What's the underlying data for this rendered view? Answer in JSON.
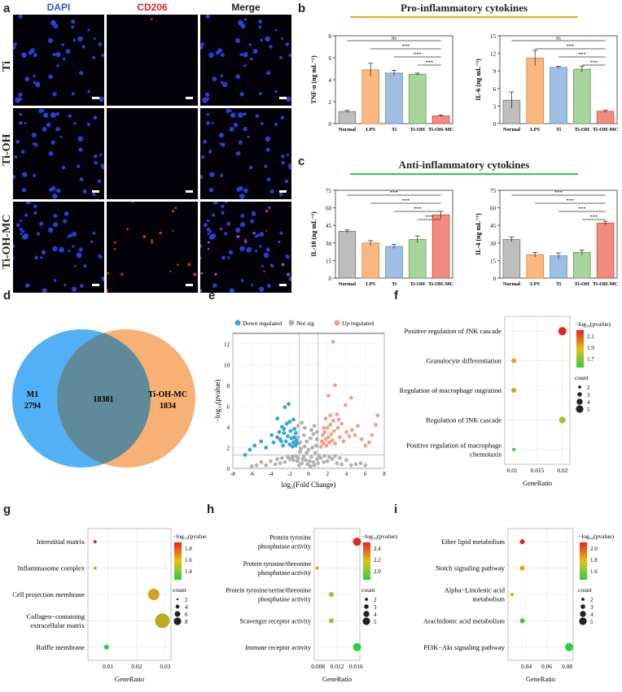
{
  "panel_labels": {
    "a": "a",
    "b": "b",
    "c": "c",
    "d": "d",
    "e": "e",
    "f": "f",
    "g": "g",
    "h": "h",
    "i": "i"
  },
  "microscopy": {
    "columns": [
      "DAPI",
      "CD206",
      "Merge"
    ],
    "column_colors": [
      "#2a5bd7",
      "#d62728",
      "#222222"
    ],
    "rows": [
      "Ti",
      "Ti-OH",
      "Ti-OH-MC"
    ],
    "red_density": [
      1,
      0,
      18
    ],
    "blue_density": [
      40,
      45,
      45
    ]
  },
  "section_b_title": "Pro-inflammatory cytokines",
  "section_c_title": "Anti-inflammatory cytokines",
  "section_b_color": "#f5a623",
  "section_c_color": "#2ecc40",
  "chart_data": [
    {
      "id": "tnf",
      "type": "bar",
      "ylabel": "TNF-α (ng mL⁻¹)",
      "categories": [
        "Normal",
        "LPS",
        "Ti",
        "Ti-OH",
        "Ti-OH-MC"
      ],
      "values": [
        1.1,
        4.9,
        4.6,
        4.5,
        0.7
      ],
      "errors": [
        0.1,
        0.6,
        0.25,
        0.1,
        0.08
      ],
      "ylim": [
        0,
        8
      ],
      "yticks": [
        0,
        2,
        4,
        6,
        8
      ],
      "significance": [
        "ns",
        "***",
        "***",
        "***"
      ]
    },
    {
      "id": "il6",
      "type": "bar",
      "ylabel": "IL-6 (ng mL⁻¹)",
      "categories": [
        "Normal",
        "LPS",
        "Ti",
        "Ti-OH",
        "Ti-OH-MC"
      ],
      "values": [
        4.0,
        11.2,
        9.6,
        9.3,
        2.1
      ],
      "errors": [
        1.4,
        1.3,
        0.2,
        0.5,
        0.2
      ],
      "ylim": [
        0,
        15
      ],
      "yticks": [
        0,
        3,
        6,
        9,
        12,
        15
      ],
      "significance": [
        "ns",
        "***",
        "***",
        "***"
      ]
    },
    {
      "id": "il10",
      "type": "bar",
      "ylabel": "IL-10 (ng mL⁻¹)",
      "categories": [
        "Normal",
        "LPS",
        "Ti",
        "Ti-OH",
        "Ti-OH-MC"
      ],
      "values": [
        40,
        30,
        27,
        33,
        54
      ],
      "errors": [
        1.2,
        2,
        1.8,
        3,
        3
      ],
      "ylim": [
        0,
        75
      ],
      "yticks": [
        0,
        15,
        30,
        45,
        60,
        75
      ],
      "significance": [
        "***",
        "***",
        "***",
        "***"
      ]
    },
    {
      "id": "il4",
      "type": "bar",
      "ylabel": "IL-4 (ng mL⁻¹)",
      "categories": [
        "Normal",
        "LPS",
        "Ti",
        "Ti-OH",
        "Ti-OH-MC"
      ],
      "values": [
        33,
        20,
        19,
        22,
        47
      ],
      "errors": [
        2,
        2,
        2.5,
        2,
        1.5
      ],
      "ylim": [
        0,
        75
      ],
      "yticks": [
        0,
        15,
        30,
        45,
        60,
        75
      ],
      "significance": [
        "***",
        "***",
        "***",
        "***"
      ]
    },
    {
      "id": "venn",
      "type": "venn",
      "sets": [
        {
          "name": "M1",
          "only": 2794,
          "color": "#3fa9f5"
        },
        {
          "name": "Ti-OH-MC",
          "only": 1834,
          "color": "#f7a25c"
        }
      ],
      "intersection": 18381
    },
    {
      "id": "volcano",
      "type": "scatter",
      "xlabel": "log₂(Fold Change)",
      "ylabel": "−log₁₀(pvalue)",
      "xlim": [
        -8,
        8
      ],
      "ylim": [
        0,
        13
      ],
      "xticks": [
        -8,
        -6,
        -4,
        -2,
        0,
        2,
        4,
        6,
        8
      ],
      "yticks": [
        0,
        2,
        4,
        6,
        8,
        10,
        12
      ],
      "legend": [
        "Down regulated",
        "Not sig",
        "Up regulated"
      ],
      "legend_colors": [
        "#33a8d9",
        "#b3b3b3",
        "#f3a08a"
      ],
      "points": {
        "down": [
          [
            -6.7,
            1.3
          ],
          [
            -6.2,
            1.8
          ],
          [
            -5.7,
            2.2
          ],
          [
            -5,
            2.6
          ],
          [
            -4.5,
            2.0
          ],
          [
            -3.9,
            3.2
          ],
          [
            -3.7,
            2.5
          ],
          [
            -3.3,
            3.0
          ],
          [
            -3.0,
            2.8
          ],
          [
            -2.7,
            2.2
          ],
          [
            -2.6,
            3.4
          ],
          [
            -2.4,
            2.6
          ],
          [
            -2.2,
            3.1
          ],
          [
            -2.0,
            2.3
          ],
          [
            -1.8,
            2.9
          ],
          [
            -1.7,
            2.1
          ],
          [
            -1.6,
            2.5
          ],
          [
            -1.5,
            3.0
          ],
          [
            -1.4,
            2.2
          ],
          [
            -1.3,
            2.7
          ],
          [
            -1.2,
            2.4
          ],
          [
            -2.9,
            2.6
          ],
          [
            -3.1,
            3.5
          ],
          [
            -2.3,
            4.3
          ],
          [
            -1.9,
            3.6
          ],
          [
            -2.5,
            5.9
          ],
          [
            -2.1,
            6.2
          ],
          [
            -2.6,
            3.8
          ],
          [
            -1.6,
            4.7
          ],
          [
            -1.5,
            3.8
          ],
          [
            -2.8,
            4.0
          ],
          [
            -3.3,
            4.8
          ],
          [
            -2.0,
            4.5
          ],
          [
            -1.35,
            3.4
          ]
        ],
        "up": [
          [
            1.3,
            2.1
          ],
          [
            1.4,
            2.6
          ],
          [
            1.5,
            3.2
          ],
          [
            1.6,
            2.4
          ],
          [
            1.7,
            3.5
          ],
          [
            1.8,
            2.8
          ],
          [
            1.9,
            2.2
          ],
          [
            2.0,
            3.9
          ],
          [
            2.1,
            3.0
          ],
          [
            2.2,
            2.5
          ],
          [
            2.3,
            4.2
          ],
          [
            2.4,
            3.3
          ],
          [
            2.5,
            2.7
          ],
          [
            2.6,
            4.6
          ],
          [
            2.7,
            3.6
          ],
          [
            2.8,
            2.4
          ],
          [
            3.0,
            5.2
          ],
          [
            3.1,
            3.9
          ],
          [
            3.3,
            3.0
          ],
          [
            3.5,
            4.3
          ],
          [
            3.7,
            2.6
          ],
          [
            4.0,
            3.5
          ],
          [
            4.3,
            3.1
          ],
          [
            4.6,
            3.7
          ],
          [
            4.9,
            3.2
          ],
          [
            5.2,
            4.1
          ],
          [
            5.6,
            2.8
          ],
          [
            6.0,
            2.2
          ],
          [
            6.4,
            2.5
          ],
          [
            6.7,
            3.2
          ],
          [
            7.1,
            4.2
          ],
          [
            7.3,
            5.1
          ],
          [
            4.5,
            6.8
          ],
          [
            3.9,
            6.1
          ],
          [
            2.3,
            5.1
          ],
          [
            2.8,
            8.0
          ],
          [
            2.1,
            7.0
          ],
          [
            2.6,
            12.2
          ],
          [
            1.8,
            4.8
          ],
          [
            3.2,
            4.7
          ],
          [
            1.6,
            3.9
          ]
        ],
        "notsig": [
          [
            -1.1,
            1.0
          ],
          [
            -0.9,
            1.6
          ],
          [
            -0.7,
            0.5
          ],
          [
            -0.5,
            1.2
          ],
          [
            -0.3,
            0.8
          ],
          [
            -0.1,
            0.4
          ],
          [
            0.1,
            0.7
          ],
          [
            0.3,
            1.1
          ],
          [
            0.5,
            0.6
          ],
          [
            0.7,
            1.5
          ],
          [
            0.9,
            0.9
          ],
          [
            1.1,
            1.2
          ],
          [
            -1.0,
            0.3
          ],
          [
            -0.6,
            0.9
          ],
          [
            -0.2,
            1.5
          ],
          [
            0.2,
            0.2
          ],
          [
            0.6,
            0.3
          ],
          [
            1.0,
            0.5
          ],
          [
            -1.2,
            0.7
          ],
          [
            -0.8,
            1.9
          ],
          [
            -0.4,
            2.1
          ],
          [
            0.0,
            1.8
          ],
          [
            0.4,
            2.0
          ],
          [
            0.8,
            2.2
          ],
          [
            -0.9,
            2.5
          ],
          [
            0.9,
            2.8
          ],
          [
            -1.1,
            3.0
          ],
          [
            -1.3,
            1.2
          ],
          [
            1.3,
            1.0
          ],
          [
            -1.6,
            0.8
          ],
          [
            1.6,
            0.6
          ],
          [
            -2.0,
            0.9
          ],
          [
            2.0,
            0.7
          ],
          [
            -2.5,
            0.6
          ],
          [
            2.5,
            0.9
          ],
          [
            -3.0,
            0.5
          ],
          [
            3.0,
            0.5
          ],
          [
            -3.5,
            0.4
          ],
          [
            3.5,
            0.4
          ],
          [
            -4.0,
            0.7
          ],
          [
            4.0,
            0.8
          ],
          [
            -4.5,
            0.3
          ],
          [
            4.5,
            0.3
          ],
          [
            -5.0,
            0.6
          ],
          [
            5.0,
            0.4
          ],
          [
            -5.5,
            0.3
          ],
          [
            5.5,
            0.5
          ],
          [
            -6.0,
            0.2
          ],
          [
            6.0,
            0.3
          ],
          [
            -2.2,
            1.1
          ],
          [
            2.2,
            1.1
          ],
          [
            -2.8,
            1.0
          ],
          [
            2.8,
            1.2
          ],
          [
            -3.3,
            0.9
          ],
          [
            3.3,
            1.0
          ],
          [
            -1.7,
            1.1
          ],
          [
            1.7,
            1.2
          ],
          [
            -0.5,
            3.2
          ],
          [
            0.5,
            3.3
          ],
          [
            -0.2,
            2.6
          ],
          [
            0.2,
            2.9
          ],
          [
            -0.7,
            4.4
          ],
          [
            -0.4,
            3.9
          ],
          [
            0.3,
            3.7
          ],
          [
            0.6,
            4.1
          ],
          [
            -1.1,
            4.1
          ],
          [
            0.9,
            3.5
          ]
        ]
      }
    },
    {
      "id": "f",
      "type": "bubble",
      "xlabel": "GeneRatio",
      "terms": [
        "Positive regulation of JNK cascade",
        "Granulocyte differentiation",
        "Regulation of macrophage migration",
        "Regulation of JNK cascade",
        "Positive regulation of macrophage chemotaxis"
      ],
      "x": [
        0.02,
        0.0103,
        0.0103,
        0.02,
        0.0103
      ],
      "counts": [
        5,
        3,
        3,
        4,
        2
      ],
      "colors": [
        "#e8221c",
        "#e6a117",
        "#c9a820",
        "#8ccd2a",
        "#2ecc40"
      ],
      "xticks": [
        0.01,
        0.015,
        0.02
      ],
      "xlim": [
        0.0085,
        0.0215
      ],
      "legend_title": "−log₁₀(pvalue)",
      "colorbar_ticks": [
        "2.1",
        "1.9",
        "1.7"
      ],
      "size_title": "count",
      "size_values": [
        2,
        3,
        4,
        5
      ]
    },
    {
      "id": "g",
      "type": "bubble",
      "xlabel": "GeneRatio",
      "terms": [
        "Interstitial matrix",
        "Inflammasome complex",
        "Cell projection membrane",
        "Collagen−containing extracellular matrix",
        "Ruffle membrane"
      ],
      "x": [
        0.0055,
        0.0055,
        0.026,
        0.029,
        0.0095
      ],
      "counts": [
        2,
        2,
        7,
        9,
        3
      ],
      "colors": [
        "#e8221c",
        "#e6a117",
        "#d4a01a",
        "#b9ad1e",
        "#2ecc40"
      ],
      "xticks": [
        0.01,
        0.02,
        0.03
      ],
      "xlim": [
        0.003,
        0.032
      ],
      "legend_title": "−log₁₀(pvalue)",
      "colorbar_ticks": [
        "1.8",
        "1.6",
        "1.4"
      ],
      "size_title": "count",
      "size_values": [
        2,
        4,
        6,
        8
      ]
    },
    {
      "id": "h",
      "type": "bubble",
      "xlabel": "GeneRatio",
      "terms": [
        "Protein tyrosine phosphatase activity",
        "Protein tyrosine/threonine phosphatase activity",
        "Protein tyrosine/serine/threonine phosphatase activity",
        "Scavenger receptor activity",
        "Immune receptor activity"
      ],
      "x": [
        0.0162,
        0.0078,
        0.0108,
        0.0108,
        0.0162
      ],
      "counts": [
        5,
        2,
        3,
        3,
        5
      ],
      "colors": [
        "#e8221c",
        "#e6a117",
        "#a7c021",
        "#8ccd2a",
        "#2ecc40"
      ],
      "xticks": [
        0.008,
        0.012,
        0.016
      ],
      "xlim": [
        0.0072,
        0.0168
      ],
      "legend_title": "−log₁₀(pvalue)",
      "colorbar_ticks": [
        "2.4",
        "2.2",
        "2.0"
      ],
      "size_title": "count",
      "size_values": [
        2,
        3,
        4,
        5
      ]
    },
    {
      "id": "i",
      "type": "bubble",
      "xlabel": "GeneRatio",
      "terms": [
        "Ether lipid metabolism",
        "Notch signaling pathway",
        "Alpha−Linolenic acid metabolism",
        "Arachidonic acid metabolism",
        "PI3K−Akt signaling pathway"
      ],
      "x": [
        0.036,
        0.036,
        0.026,
        0.036,
        0.082
      ],
      "counts": [
        3,
        3,
        2,
        3,
        5
      ],
      "colors": [
        "#e8221c",
        "#e6a117",
        "#e6a117",
        "#47c52f",
        "#2ecc40"
      ],
      "xticks": [
        0.04,
        0.06,
        0.08
      ],
      "xlim": [
        0.022,
        0.086
      ],
      "legend_title": "−log₁₀(pvalue)",
      "colorbar_ticks": [
        "2.0",
        "1.8",
        "1.6"
      ],
      "size_title": "count",
      "size_values": [
        2,
        3,
        4,
        5
      ]
    }
  ]
}
